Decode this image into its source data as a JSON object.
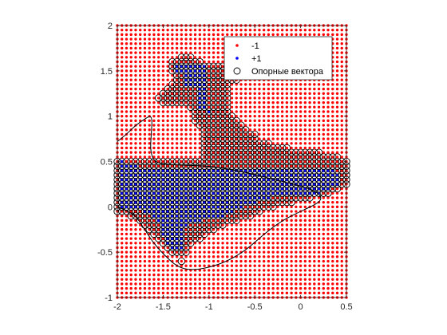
{
  "chart_data": {
    "type": "scatter",
    "title": "",
    "xlabel": "",
    "ylabel": "",
    "xlim": [
      -2,
      0.5
    ],
    "ylim": [
      -1,
      2
    ],
    "xticks": [
      -2,
      -1.5,
      -1,
      -0.5,
      0,
      0.5
    ],
    "yticks": [
      -1,
      -0.5,
      0,
      0.5,
      1,
      1.5,
      2
    ],
    "xtick_labels": [
      "-2",
      "-1.5",
      "-1",
      "-0.5",
      "0",
      "0.5"
    ],
    "ytick_labels": [
      "-1",
      "-0.5",
      "0",
      "0.5",
      "1",
      "1.5",
      "2"
    ],
    "grid_step": 0.05,
    "grid": false,
    "legend_position": "top-right",
    "legend": [
      {
        "label": "-1",
        "marker": "dot",
        "color": "#ff0000"
      },
      {
        "label": "+1",
        "marker": "dot",
        "color": "#0000ff"
      },
      {
        "label": "Опорные вектора",
        "marker": "circle",
        "color": "#000000"
      }
    ],
    "colors": {
      "negative": "#ff0000",
      "positive": "#0000ff",
      "support": "#000000",
      "boundary": "#000000"
    },
    "positive_region_rows": [
      {
        "y": 1.55,
        "x_from": -1.35,
        "x_to": -1.05
      },
      {
        "y": 1.5,
        "x_from": -1.35,
        "x_to": -1.05
      },
      {
        "y": 1.45,
        "x_from": -1.25,
        "x_to": -1.05
      },
      {
        "y": 1.4,
        "x_from": -1.25,
        "x_to": -1.05
      },
      {
        "y": 1.35,
        "x_from": -1.25,
        "x_to": -1.05
      },
      {
        "y": 1.3,
        "x_from": -1.1,
        "x_to": -1.05
      },
      {
        "y": 1.25,
        "x_from": -1.1,
        "x_to": -1.05
      },
      {
        "y": 1.2,
        "x_from": -1.1,
        "x_to": -1.05
      },
      {
        "y": 1.15,
        "x_from": -1.1,
        "x_to": -1.05
      },
      {
        "y": 1.1,
        "x_from": -1.1,
        "x_to": -1.05
      },
      {
        "y": 1.05,
        "x_from": -1.0,
        "x_to": -1.0
      },
      {
        "y": 0.5,
        "x_from": -1.95,
        "x_to": -1.95
      },
      {
        "y": 0.45,
        "x_from": -1.95,
        "x_to": -1.8
      },
      {
        "y": 0.4,
        "x_from": -1.95,
        "x_to": 0.35
      },
      {
        "y": 0.35,
        "x_from": -1.95,
        "x_to": 0.4
      },
      {
        "y": 0.3,
        "x_from": -1.95,
        "x_to": 0.4
      },
      {
        "y": 0.25,
        "x_from": -1.95,
        "x_to": 0.4
      },
      {
        "y": 0.2,
        "x_from": -1.95,
        "x_to": 0.3
      },
      {
        "y": 0.15,
        "x_from": -1.95,
        "x_to": 0.2
      },
      {
        "y": 0.1,
        "x_from": -1.95,
        "x_to": -0.35
      },
      {
        "y": 0.05,
        "x_from": -1.95,
        "x_to": -0.5
      },
      {
        "y": 0.0,
        "x_from": -1.95,
        "x_to": -0.65
      },
      {
        "y": -0.05,
        "x_from": -1.7,
        "x_to": -0.75
      },
      {
        "y": -0.1,
        "x_from": -1.6,
        "x_to": -0.85
      },
      {
        "y": -0.15,
        "x_from": -1.55,
        "x_to": -1.1
      },
      {
        "y": -0.2,
        "x_from": -1.5,
        "x_to": -1.25
      },
      {
        "y": -0.25,
        "x_from": -1.5,
        "x_to": -1.3
      },
      {
        "y": -0.3,
        "x_from": -1.5,
        "x_to": -1.3
      },
      {
        "y": -0.35,
        "x_from": -1.45,
        "x_to": -1.3
      },
      {
        "y": -0.4,
        "x_from": -1.45,
        "x_to": -1.3
      },
      {
        "y": -0.45,
        "x_from": -1.4,
        "x_to": -1.3
      }
    ],
    "support_vector_rows": [
      {
        "y": 1.65,
        "x_from": -1.3,
        "x_to": -1.2
      },
      {
        "y": 1.6,
        "x_from": -1.4,
        "x_to": -1.1
      },
      {
        "y": 1.55,
        "x_from": -1.4,
        "x_to": -0.6
      },
      {
        "y": 1.5,
        "x_from": -1.4,
        "x_to": -0.5
      },
      {
        "y": 1.45,
        "x_from": -1.35,
        "x_to": -0.55
      },
      {
        "y": 1.4,
        "x_from": -1.35,
        "x_to": -0.7
      },
      {
        "y": 1.35,
        "x_from": -1.4,
        "x_to": -0.8
      },
      {
        "y": 1.3,
        "x_from": -1.45,
        "x_to": -0.8
      },
      {
        "y": 1.25,
        "x_from": -1.5,
        "x_to": -0.8
      },
      {
        "y": 1.2,
        "x_from": -1.55,
        "x_to": -0.8
      },
      {
        "y": 1.15,
        "x_from": -1.5,
        "x_to": -0.8
      },
      {
        "y": 1.1,
        "x_from": -1.2,
        "x_to": -0.8
      },
      {
        "y": 1.05,
        "x_from": -1.15,
        "x_to": -0.8
      },
      {
        "y": 1.0,
        "x_from": -1.15,
        "x_to": -0.75
      },
      {
        "y": 0.95,
        "x_from": -1.15,
        "x_to": -0.7
      },
      {
        "y": 0.9,
        "x_from": -1.1,
        "x_to": -0.65
      },
      {
        "y": 0.85,
        "x_from": -1.05,
        "x_to": -0.6
      },
      {
        "y": 0.8,
        "x_from": -1.05,
        "x_to": -0.5
      },
      {
        "y": 0.75,
        "x_from": -1.05,
        "x_to": -0.5
      },
      {
        "y": 0.7,
        "x_from": -1.05,
        "x_to": -0.35
      },
      {
        "y": 0.65,
        "x_from": -1.05,
        "x_to": -0.15
      },
      {
        "y": 0.6,
        "x_from": -1.05,
        "x_to": 0.2
      },
      {
        "y": 0.55,
        "x_from": -1.05,
        "x_to": 0.4
      },
      {
        "y": 0.5,
        "x_from": -2.0,
        "x_to": 0.5
      },
      {
        "y": 0.45,
        "x_from": -2.0,
        "x_to": 0.5
      },
      {
        "y": 0.4,
        "x_from": -2.0,
        "x_to": 0.5
      },
      {
        "y": 0.35,
        "x_from": -2.0,
        "x_to": 0.5
      },
      {
        "y": 0.3,
        "x_from": -2.0,
        "x_to": 0.5
      },
      {
        "y": 0.25,
        "x_from": -2.0,
        "x_to": 0.5
      },
      {
        "y": 0.2,
        "x_from": -2.0,
        "x_to": 0.4
      },
      {
        "y": 0.15,
        "x_from": -2.0,
        "x_to": 0.3
      },
      {
        "y": 0.1,
        "x_from": -2.0,
        "x_to": 0.1
      },
      {
        "y": 0.05,
        "x_from": -2.0,
        "x_to": -0.1
      },
      {
        "y": 0.0,
        "x_from": -2.0,
        "x_to": -0.3
      },
      {
        "y": -0.05,
        "x_from": -2.0,
        "x_to": -0.45
      },
      {
        "y": -0.1,
        "x_from": -1.85,
        "x_to": -0.55
      },
      {
        "y": -0.15,
        "x_from": -1.75,
        "x_to": -0.7
      },
      {
        "y": -0.2,
        "x_from": -1.7,
        "x_to": -0.85
      },
      {
        "y": -0.25,
        "x_from": -1.65,
        "x_to": -0.95
      },
      {
        "y": -0.3,
        "x_from": -1.6,
        "x_to": -1.05
      },
      {
        "y": -0.35,
        "x_from": -1.55,
        "x_to": -1.1
      },
      {
        "y": -0.4,
        "x_from": -1.5,
        "x_to": -1.2
      },
      {
        "y": -0.45,
        "x_from": -1.45,
        "x_to": -1.25
      },
      {
        "y": -0.5,
        "x_from": -1.4,
        "x_to": -1.25
      },
      {
        "y": -0.6,
        "x_from": -1.3,
        "x_to": -1.3
      }
    ],
    "decision_boundary": [
      [
        -2.0,
        0.72
      ],
      [
        -1.9,
        0.8
      ],
      [
        -1.8,
        0.9
      ],
      [
        -1.7,
        0.97
      ],
      [
        -1.65,
        1.0
      ],
      [
        -1.62,
        0.98
      ],
      [
        -1.63,
        0.8
      ],
      [
        -1.64,
        0.62
      ],
      [
        -1.6,
        0.5
      ],
      [
        -1.5,
        0.47
      ],
      [
        -1.3,
        0.46
      ],
      [
        -1.0,
        0.45
      ],
      [
        -0.8,
        0.42
      ],
      [
        -0.6,
        0.38
      ],
      [
        -0.4,
        0.33
      ],
      [
        -0.2,
        0.28
      ],
      [
        0.0,
        0.23
      ],
      [
        0.15,
        0.18
      ],
      [
        0.22,
        0.12
      ],
      [
        0.22,
        0.07
      ],
      [
        0.15,
        0.02
      ],
      [
        0.0,
        -0.05
      ],
      [
        -0.2,
        -0.15
      ],
      [
        -0.4,
        -0.3
      ],
      [
        -0.6,
        -0.48
      ],
      [
        -0.8,
        -0.6
      ],
      [
        -1.0,
        -0.67
      ],
      [
        -1.2,
        -0.7
      ],
      [
        -1.35,
        -0.66
      ],
      [
        -1.5,
        -0.52
      ],
      [
        -1.62,
        -0.38
      ],
      [
        -1.72,
        -0.22
      ],
      [
        -1.8,
        -0.1
      ],
      [
        -1.9,
        -0.04
      ],
      [
        -2.0,
        0.0
      ]
    ]
  }
}
